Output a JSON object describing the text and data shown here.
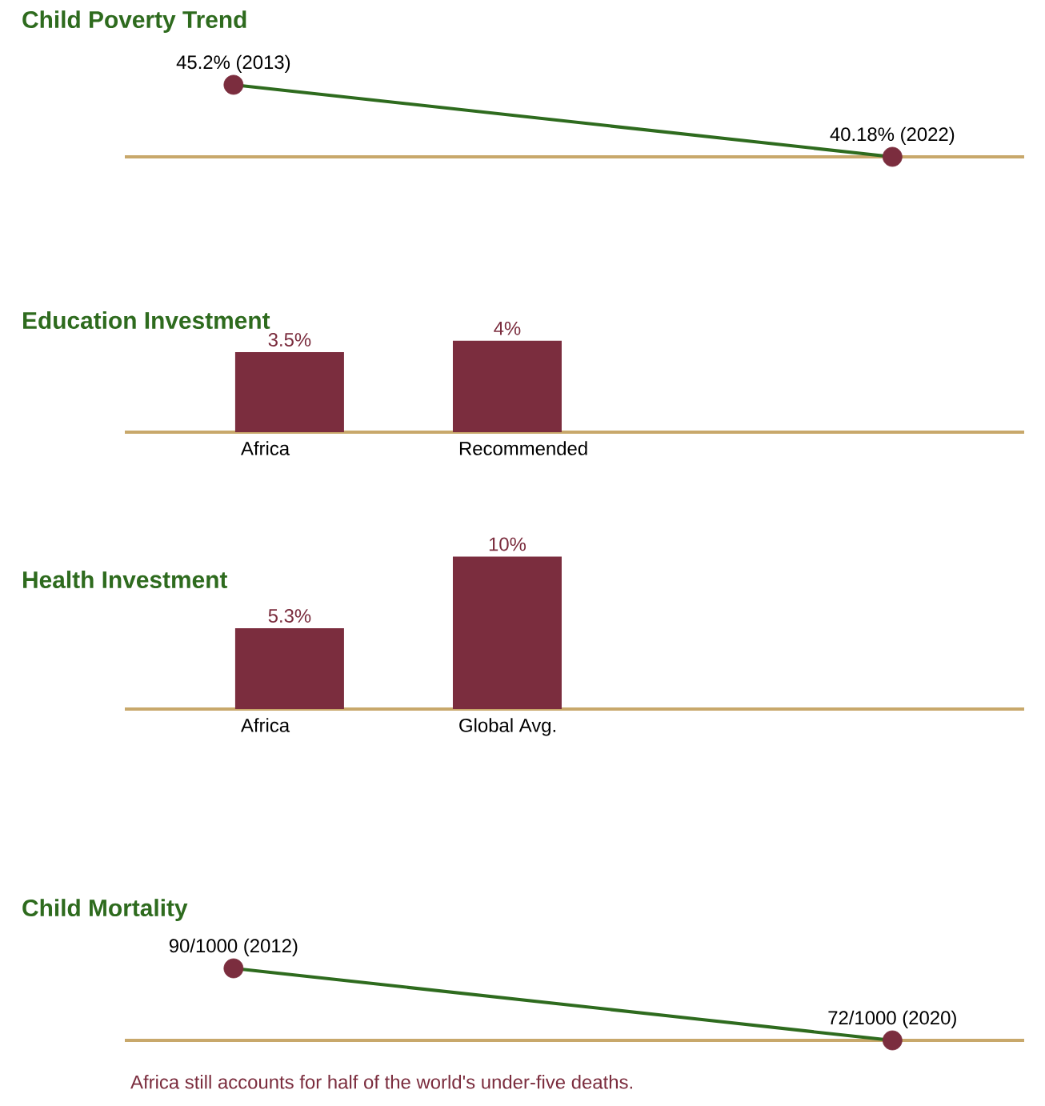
{
  "chart_data": [
    {
      "type": "line",
      "title": "Child Poverty Trend",
      "categories": [
        null,
        null
      ],
      "values": [
        45.2,
        40.18
      ],
      "value_labels": [
        "45.2% (2013)",
        "40.18% (2022)"
      ],
      "color": "#2e6b1e",
      "colors": [
        "#7b2d3e",
        "#7b2d3e"
      ],
      "marker": "circle"
    },
    {
      "type": "bar",
      "title": "Education Investment",
      "categories": [
        "Africa",
        "Recommended"
      ],
      "values": [
        3.5,
        4
      ],
      "value_labels": [
        "3.5%",
        "4%"
      ],
      "color": "#7b2d3e"
    },
    {
      "type": "bar",
      "title": "Health Investment",
      "categories": [
        "Africa",
        "Global Avg."
      ],
      "values": [
        5.3,
        10
      ],
      "value_labels": [
        "5.3%",
        "10%"
      ],
      "color": "#7b2d3e"
    },
    {
      "type": "line",
      "title": "Child Mortality",
      "categories": [
        null,
        null
      ],
      "values": [
        90,
        72
      ],
      "value_labels": [
        "90/1000 (2012)",
        "72/1000 (2020)"
      ],
      "color": "#2e6b1e",
      "colors": [
        "#7b2d3e",
        "#7b2d3e"
      ],
      "marker": "circle",
      "annotations": [
        "Africa still accounts for half of the world's under-five deaths."
      ]
    }
  ]
}
